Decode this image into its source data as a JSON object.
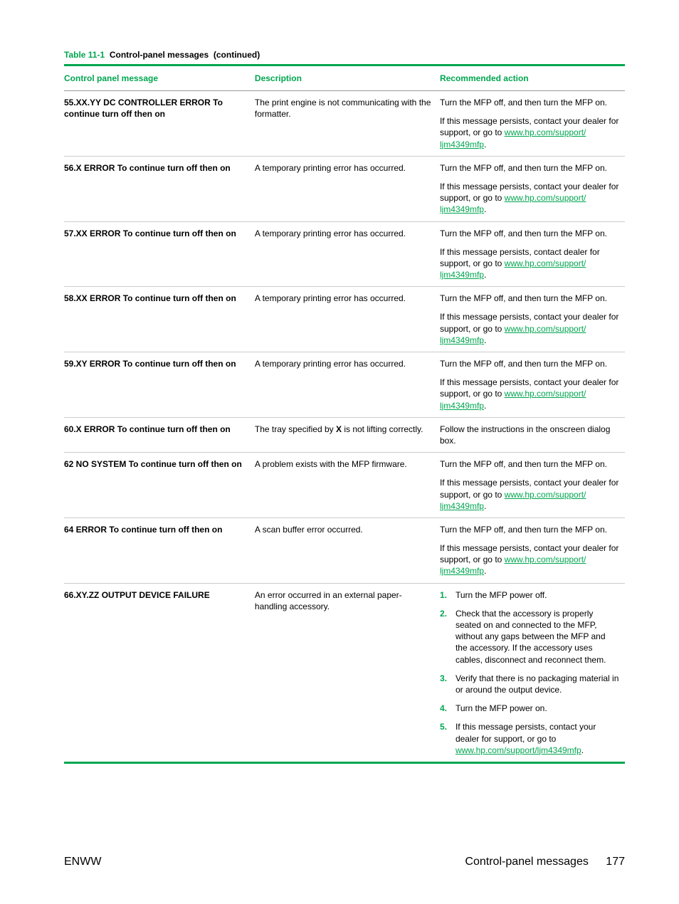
{
  "caption": {
    "number": "Table 11-1",
    "title": "Control-panel messages",
    "continued": "(continued)"
  },
  "headers": {
    "col1": "Control panel message",
    "col2": "Description",
    "col3": "Recommended action"
  },
  "colors": {
    "accent": "#00a650",
    "border": "#cccccc",
    "text": "#000000"
  },
  "link": {
    "text": "www.hp.com/support/ljm4349mfp",
    "shortprefix": "www.hp.com/support/",
    "shortsuffix": "ljm4349mfp"
  },
  "rows": [
    {
      "message": "55.XX.YY DC CONTROLLER ERROR To continue turn off then on",
      "description": "The print engine is not communicating with the formatter.",
      "action": {
        "type": "paras",
        "p1": "Turn the MFP off, and then turn the MFP on.",
        "p2_pre": "If this message persists, contact your dealer for support, or go to ",
        "p2_post": "."
      }
    },
    {
      "message": "56.X ERROR To continue turn off then on",
      "description": "A temporary printing error has occurred.",
      "action": {
        "type": "paras",
        "p1": "Turn the MFP off, and then turn the MFP on.",
        "p2_pre": "If this message persists, contact your dealer for support, or go to ",
        "p2_post": "."
      }
    },
    {
      "message": "57.XX ERROR To continue turn off then on",
      "description": "A temporary printing error has occurred.",
      "action": {
        "type": "paras",
        "p1": "Turn the MFP off, and then turn the MFP on.",
        "p2_pre": "If this message persists, contact dealer for support, or go to ",
        "p2_post": "."
      }
    },
    {
      "message": "58.XX ERROR To continue turn off then on",
      "description": "A temporary printing error has occurred.",
      "action": {
        "type": "paras",
        "p1": "Turn the MFP off, and then turn the MFP on.",
        "p2_pre": "If this message persists, contact your dealer for support, or go to ",
        "p2_post": "."
      }
    },
    {
      "message": "59.XY ERROR To continue turn off then on",
      "description": "A temporary printing error has occurred.",
      "action": {
        "type": "paras",
        "p1": "Turn the MFP off, and then turn the MFP on.",
        "p2_pre": "If this message persists, contact your dealer for support, or go to ",
        "p2_post": "."
      }
    },
    {
      "message": "60.X ERROR To continue turn off then on",
      "description_pre": "The tray specified by ",
      "description_bold": "X",
      "description_post": " is not lifting correctly.",
      "action": {
        "type": "single",
        "p1": "Follow the instructions in the onscreen dialog box."
      }
    },
    {
      "message": "62 NO SYSTEM To continue turn off then on",
      "description": "A problem exists with the MFP firmware.",
      "action": {
        "type": "paras",
        "p1": "Turn the MFP off, and then turn the MFP on.",
        "p2_pre": "If this message persists, contact your dealer for support, or go to ",
        "p2_post": "."
      }
    },
    {
      "message": "64 ERROR To continue turn off then on",
      "description": "A scan buffer error occurred.",
      "action": {
        "type": "paras",
        "p1": "Turn the MFP off, and then turn the MFP on.",
        "p2_pre": "If this message persists, contact your dealer for support, or go to ",
        "p2_post": "."
      }
    },
    {
      "message": "66.XY.ZZ OUTPUT DEVICE FAILURE",
      "description": "An error occurred in an external paper-handling accessory.",
      "action": {
        "type": "steps",
        "steps": [
          {
            "n": "1.",
            "text": "Turn the MFP power off."
          },
          {
            "n": "2.",
            "text": "Check that the accessory is properly seated on and connected to the MFP, without any gaps between the MFP and the accessory. If the accessory uses cables, disconnect and reconnect them."
          },
          {
            "n": "3.",
            "text": "Verify that there is no packaging material in or around the output device."
          },
          {
            "n": "4.",
            "text": "Turn the MFP power on."
          },
          {
            "n": "5.",
            "text_pre": "If this message persists, contact your dealer for support, or go to ",
            "text_post": ".",
            "haslink": true
          }
        ]
      }
    }
  ],
  "footer": {
    "left": "ENWW",
    "right_label": "Control-panel messages",
    "page": "177"
  }
}
